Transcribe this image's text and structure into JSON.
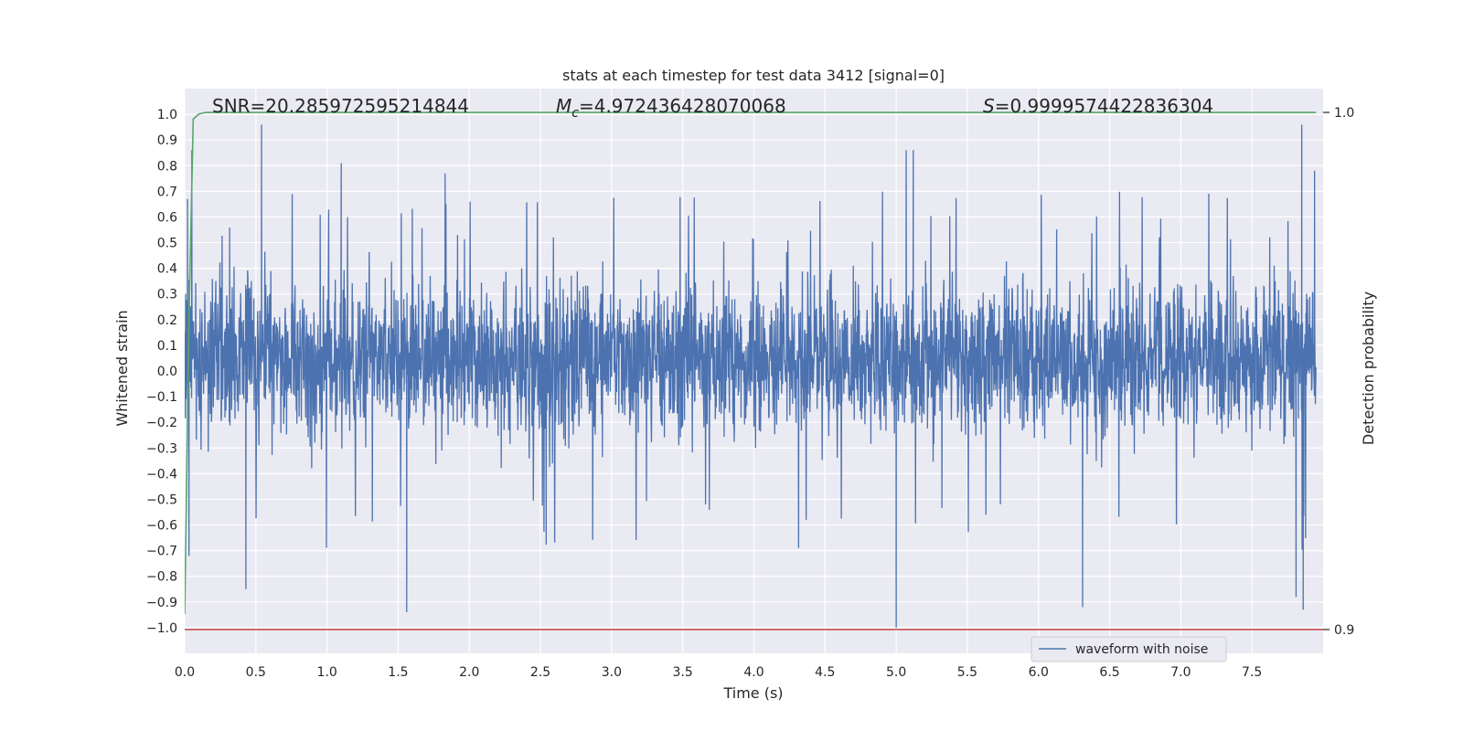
{
  "chart_data": {
    "type": "line",
    "title": "stats at each timestep for test data 3412 [signal=0]",
    "xlabel": "Time (s)",
    "ylabel": "Whitened strain",
    "y2label": "Detection probability",
    "xlim": [
      0,
      8.0
    ],
    "ylim": [
      -1.1,
      1.1
    ],
    "y2lim": [
      0.8954,
      1.0046
    ],
    "xticks": [
      "0.0",
      "0.5",
      "1.0",
      "1.5",
      "2.0",
      "2.5",
      "3.0",
      "3.5",
      "4.0",
      "4.5",
      "5.0",
      "5.5",
      "6.0",
      "6.5",
      "7.0",
      "7.5"
    ],
    "yticks": [
      "1.0",
      "0.9",
      "0.8",
      "0.7",
      "0.6",
      "0.5",
      "0.4",
      "0.3",
      "0.2",
      "0.1",
      "0.0",
      "-0.1",
      "-0.2",
      "-0.3",
      "-0.4",
      "-0.5",
      "-0.6",
      "-0.7",
      "-0.8",
      "-0.9",
      "-1.0"
    ],
    "y2ticks": [
      "1.0",
      "0.9"
    ],
    "grid": true,
    "legend": {
      "position": "lower-center-right",
      "entries": [
        "waveform with noise"
      ]
    },
    "annotations": {
      "snr": "SNR=20.285972595214844",
      "mc_symbol": "M",
      "mc_sub": "c",
      "mc_value": "=4.972436428070068",
      "s_symbol": "S",
      "s_value": "=0.9999574422836304"
    },
    "series": [
      {
        "name": "waveform with noise",
        "color": "#4c72b0",
        "kind": "noisy-strain",
        "x_range": [
          0,
          8.0
        ],
        "typical_envelope": [
          -0.45,
          0.65
        ],
        "spikes": [
          {
            "x": 0.02,
            "y": 0.67
          },
          {
            "x": 0.05,
            "y": 0.86
          },
          {
            "x": 0.03,
            "y": -0.72
          },
          {
            "x": 0.43,
            "y": -0.85
          },
          {
            "x": 0.54,
            "y": 0.96
          },
          {
            "x": 1.1,
            "y": 0.81
          },
          {
            "x": 1.56,
            "y": -0.94
          },
          {
            "x": 1.83,
            "y": 0.77
          },
          {
            "x": 5.0,
            "y": -1.0
          },
          {
            "x": 5.07,
            "y": 0.86
          },
          {
            "x": 5.12,
            "y": 0.86
          },
          {
            "x": 6.31,
            "y": -0.92
          },
          {
            "x": 7.81,
            "y": -0.88
          },
          {
            "x": 7.85,
            "y": 0.96
          },
          {
            "x": 7.86,
            "y": -0.93
          },
          {
            "x": 7.94,
            "y": 0.78
          }
        ]
      },
      {
        "name": "",
        "color": "#55a868",
        "axis": "y2",
        "x": [
          0.0,
          0.03,
          0.06,
          0.1,
          0.15,
          7.95
        ],
        "y": [
          0.903,
          0.96,
          0.9987,
          0.9997,
          1.0,
          1.0
        ]
      },
      {
        "name": "",
        "color": "#c44e52",
        "axis": "y2",
        "x": [
          0.0,
          8.0
        ],
        "y": [
          0.9,
          0.9
        ]
      }
    ]
  }
}
